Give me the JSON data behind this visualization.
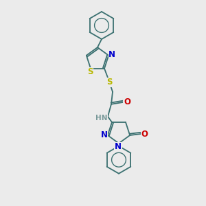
{
  "bg_color": "#ebebeb",
  "bond_color": "#3a7070",
  "atom_colors": {
    "S": "#b8b800",
    "N": "#0000cc",
    "O": "#cc0000",
    "H": "#7a9a9a",
    "C": "#3a7070"
  },
  "lw": 1.3,
  "fs": 8.5,
  "fs_hn": 7.5
}
